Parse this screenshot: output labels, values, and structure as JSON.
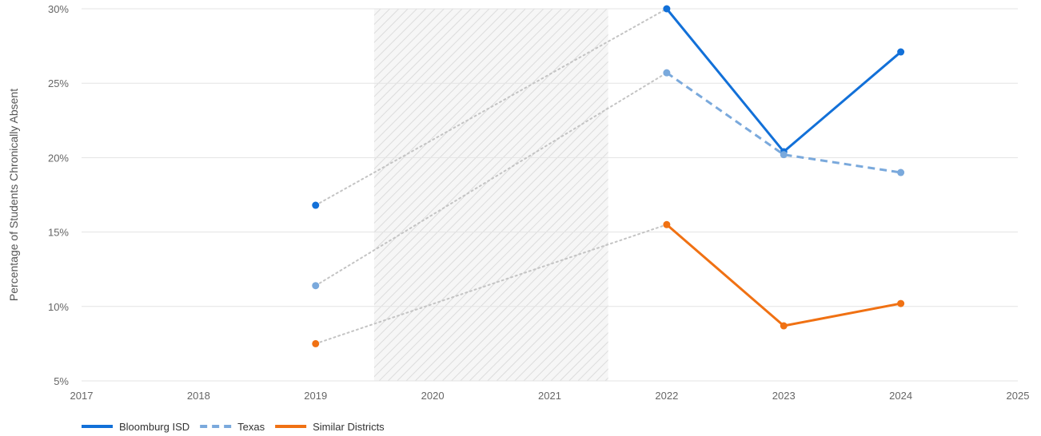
{
  "chart_data": {
    "type": "line",
    "ylabel": "Percentage of Students Chronically Absent",
    "xlabel": "",
    "xlim": [
      2017,
      2025
    ],
    "ylim": [
      5,
      30
    ],
    "x_ticks": [
      2017,
      2018,
      2019,
      2020,
      2021,
      2022,
      2023,
      2024,
      2025
    ],
    "y_ticks": [
      5,
      10,
      15,
      20,
      25,
      30
    ],
    "y_tick_suffix": "%",
    "grid": "horizontal",
    "legend_position": "bottom-left",
    "gap_band": {
      "from": 2019.5,
      "to": 2021.5,
      "pattern": "diagonal hatch"
    },
    "gap_connector_style": "dotted gray",
    "series": [
      {
        "name": "Bloomburg ISD",
        "color": "#1270d8",
        "style": "solid",
        "x": [
          2019,
          2022,
          2023,
          2024
        ],
        "y": [
          16.8,
          30.0,
          20.4,
          27.1
        ]
      },
      {
        "name": "Texas",
        "color": "#7aa9dc",
        "style": "dashed",
        "x": [
          2019,
          2022,
          2023,
          2024
        ],
        "y": [
          11.4,
          25.7,
          20.2,
          19.0
        ]
      },
      {
        "name": "Similar Districts",
        "color": "#f07113",
        "style": "solid",
        "x": [
          2019,
          2022,
          2023,
          2024
        ],
        "y": [
          7.5,
          15.5,
          8.7,
          10.2
        ]
      }
    ]
  }
}
